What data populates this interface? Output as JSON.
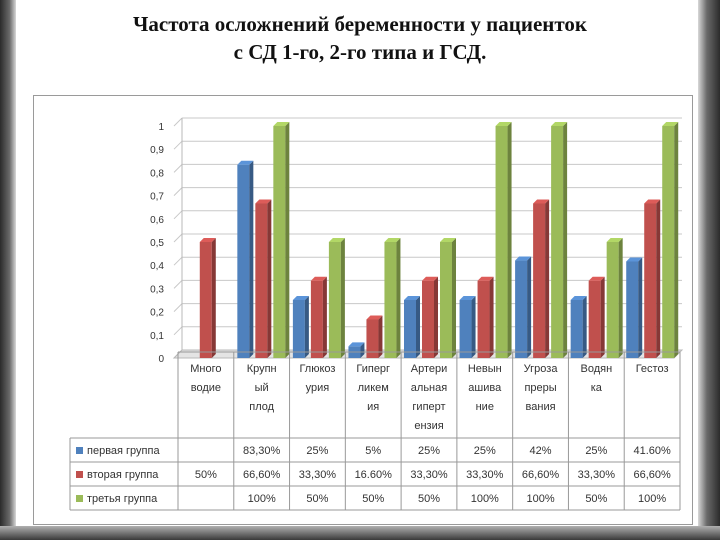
{
  "slide": {
    "title_line1": "Частота осложнений беременности у пациенток",
    "title_line2": "с СД 1-го, 2-го типа и ГСД."
  },
  "chart_data": {
    "type": "bar",
    "categories": [
      [
        "Много",
        "водие"
      ],
      [
        "Крупн",
        "ый",
        "плод"
      ],
      [
        "Глюкоз",
        "урия"
      ],
      [
        "Гиперг",
        "ликем",
        "ия"
      ],
      [
        "Артери",
        "альная",
        "гиперт",
        "ензия"
      ],
      [
        "Невын",
        "ашива",
        "ние"
      ],
      [
        "Угроза",
        "преры",
        "вания"
      ],
      [
        "Водян",
        "ка"
      ],
      [
        "Гестоз"
      ]
    ],
    "yticks": [
      "1",
      "0,9",
      "0,8",
      "0,7",
      "0,6",
      "0,5",
      "0,4",
      "0,3",
      "0,2",
      "0,1",
      "0"
    ],
    "ylim": [
      0,
      1
    ],
    "grid": true,
    "legend": "table-bottom",
    "series": [
      {
        "name": "первая группа",
        "color": "#4f81bd",
        "values": [
          null,
          0.833,
          0.25,
          0.05,
          0.25,
          0.25,
          0.42,
          0.25,
          0.416
        ],
        "labels": [
          "",
          "83,30%",
          "25%",
          "5%",
          "25%",
          "25%",
          "42%",
          "25%",
          "41.60%"
        ]
      },
      {
        "name": "вторая группа",
        "color": "#c0504d",
        "values": [
          0.5,
          0.666,
          0.333,
          0.166,
          0.333,
          0.333,
          0.666,
          0.333,
          0.666
        ],
        "labels": [
          "50%",
          "66,60%",
          "33,30%",
          "16.60%",
          "33,30%",
          "33,30%",
          "66,60%",
          "33,30%",
          "66,60%"
        ]
      },
      {
        "name": "третья группа",
        "color": "#9bbb59",
        "values": [
          null,
          1,
          0.5,
          0.5,
          0.5,
          1,
          1,
          0.5,
          1
        ],
        "labels": [
          "",
          "100%",
          "50%",
          "50%",
          "50%",
          "100%",
          "100%",
          "50%",
          "100%"
        ]
      }
    ]
  }
}
